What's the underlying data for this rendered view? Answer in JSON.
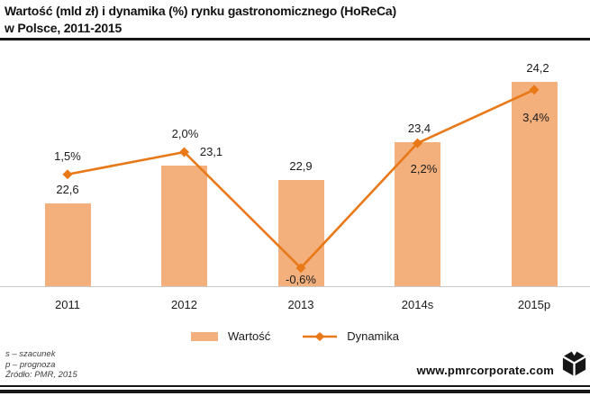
{
  "title": {
    "line1": "Wartość (mld zł) i dynamika (%) rynku gastronomicznego (HoReCa)",
    "line2": "w Polsce, 2011-2015"
  },
  "chart_data": {
    "type": "bar",
    "title": "Wartość (mld zł) i dynamika (%) rynku gastronomicznego (HoReCa) w Polsce, 2011-2015",
    "categories": [
      "2011",
      "2012",
      "2013",
      "2014s",
      "2015p"
    ],
    "series": [
      {
        "name": "Wartość",
        "type": "bar",
        "unit": "mld zł",
        "values": [
          22.6,
          23.1,
          22.9,
          23.4,
          24.2
        ],
        "labels": [
          "22,6",
          "23,1",
          "22,9",
          "23,4",
          "24,2"
        ]
      },
      {
        "name": "Dynamika",
        "type": "line",
        "unit": "%",
        "values": [
          1.5,
          2.0,
          -0.6,
          2.2,
          3.4
        ],
        "labels": [
          "1,5%",
          "2,0%",
          "-0,6%",
          "2,2%",
          "3,4%"
        ]
      }
    ],
    "xlabel": "",
    "ylabel": "",
    "grid": false,
    "legend_position": "bottom",
    "bar_axis": {
      "baseline_value": 21.5
    },
    "line_axis": {
      "visible": false
    }
  },
  "footnotes": [
    "s – szacunek",
    "p – prognoza",
    "Źródło: PMR, 2015"
  ],
  "footer": {
    "website": "www.pmrcorporate.com"
  },
  "colors": {
    "bar": "#F3B07C",
    "line": "#E87818",
    "title_rule": "#161616",
    "axis_line": "#C8C8C8",
    "text": "#1B1B1B"
  }
}
